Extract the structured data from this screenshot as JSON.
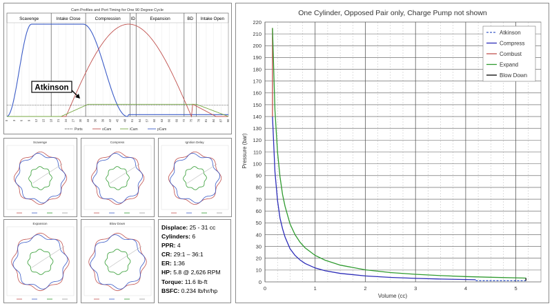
{
  "cam_chart": {
    "title": "Cam Profiles and Port Timing for One 90 Degree Cycle",
    "phases": [
      "Scavenge",
      "Intake Close",
      "Compression",
      "ID",
      "Expansion",
      "BD",
      "Intake Open"
    ],
    "callout": "Atkinson",
    "x_ticks": [
      "0",
      "3",
      "6",
      "9",
      "12",
      "15",
      "18",
      "21",
      "24",
      "27",
      "30",
      "33",
      "36",
      "39",
      "42",
      "45",
      "48",
      "51",
      "54",
      "57",
      "60",
      "63",
      "66",
      "69",
      "72",
      "75",
      "78",
      "81",
      "84",
      "87",
      "90"
    ],
    "legend": [
      "Ports",
      "oCam",
      "iCam",
      "pCam"
    ],
    "colors": {
      "ports": "#333333",
      "ocam": "#c0504d",
      "icam": "#77a843",
      "pcam": "#3a5bc7"
    }
  },
  "polar_plots": [
    {
      "title": "Scavenge"
    },
    {
      "title": "Compress"
    },
    {
      "title": "Ignition Delay"
    },
    {
      "title": "Expansion"
    },
    {
      "title": "Blow Down"
    }
  ],
  "specs": [
    {
      "label": "Displace:",
      "value": " 25 - 31 cc"
    },
    {
      "label": "Cylinders:",
      "value": " 6"
    },
    {
      "label": "PPR:",
      "value": " 4"
    },
    {
      "label": "CR:",
      "value": " 29:1 – 36:1"
    },
    {
      "label": "ER:",
      "value": " 1:36"
    },
    {
      "label": "HP:",
      "value": " 5.8 @ 2,626 RPM"
    },
    {
      "label": "Torque:",
      "value": " 11.6 lb-ft"
    },
    {
      "label": "BSFC:",
      "value": " 0.234 lb/hr/hp"
    }
  ],
  "chart_data": {
    "type": "line",
    "title": "One Cylinder, Opposed Pair only, Charge Pump not shown",
    "xlabel": "Volume (cc)",
    "ylabel": "Pressure (bar)",
    "xlim": [
      0,
      5.5
    ],
    "ylim": [
      0,
      220
    ],
    "x_ticks": [
      0,
      1,
      2,
      3,
      4,
      5
    ],
    "y_ticks": [
      0,
      10,
      20,
      30,
      40,
      50,
      60,
      70,
      80,
      90,
      100,
      110,
      120,
      130,
      140,
      150,
      160,
      170,
      180,
      190,
      200,
      210,
      220
    ],
    "grid": true,
    "legend_position": "top-right",
    "series": [
      {
        "name": "Atkinson",
        "color": "#3a5bc7",
        "dash": true,
        "x": [
          4.2,
          5.2
        ],
        "y": [
          1.0,
          1.0
        ]
      },
      {
        "name": "Compress",
        "color": "#2b2bb8",
        "x": [
          0.15,
          0.2,
          0.25,
          0.3,
          0.35,
          0.4,
          0.5,
          0.6,
          0.7,
          0.8,
          1.0,
          1.2,
          1.5,
          2.0,
          2.5,
          3.0,
          3.5,
          4.2
        ],
        "y": [
          140,
          93,
          69,
          54,
          45,
          38,
          28,
          22.4,
          18.5,
          15.6,
          11.8,
          9.4,
          7.2,
          5.0,
          3.8,
          3.0,
          2.4,
          1.8
        ]
      },
      {
        "name": "Combust",
        "color": "#c0504d",
        "x": [
          0.15,
          0.15
        ],
        "y": [
          140,
          215
        ]
      },
      {
        "name": "Expand",
        "color": "#2e9a2e",
        "x": [
          0.15,
          0.2,
          0.25,
          0.3,
          0.35,
          0.4,
          0.5,
          0.6,
          0.7,
          0.8,
          1.0,
          1.2,
          1.5,
          2.0,
          2.5,
          3.0,
          3.5,
          4.0,
          4.5,
          5.2
        ],
        "y": [
          215,
          145,
          110,
          89,
          74,
          64,
          49,
          40,
          33.5,
          28.8,
          22.4,
          18.3,
          14.2,
          10.2,
          7.9,
          6.4,
          5.3,
          4.5,
          3.9,
          3.2
        ]
      },
      {
        "name": "Blow Down",
        "color": "#000000",
        "x": [
          5.2,
          5.2
        ],
        "y": [
          3.2,
          1.0
        ]
      }
    ]
  }
}
